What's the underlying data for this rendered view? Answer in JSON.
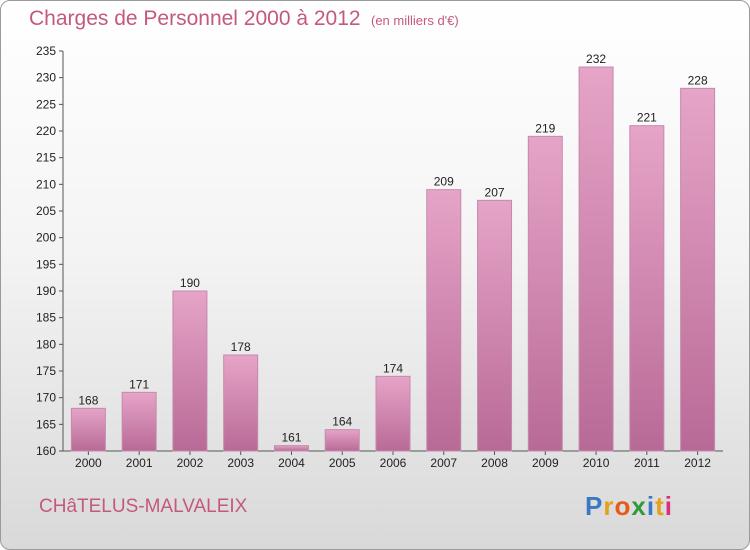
{
  "chart_data": {
    "type": "bar",
    "title": "Charges de Personnel 2000 à 2012",
    "subtitle": "(en milliers d'€)",
    "categories": [
      "2000",
      "2001",
      "2002",
      "2003",
      "2004",
      "2005",
      "2006",
      "2007",
      "2008",
      "2009",
      "2010",
      "2011",
      "2012"
    ],
    "values": [
      168,
      171,
      190,
      178,
      161,
      164,
      174,
      209,
      207,
      219,
      232,
      221,
      228
    ],
    "ylim": [
      160,
      235
    ],
    "yticks": [
      160,
      165,
      170,
      175,
      180,
      185,
      190,
      195,
      200,
      205,
      210,
      215,
      220,
      225,
      230,
      235
    ],
    "xlabel": "",
    "ylabel": "",
    "grid": false,
    "bar_color": "#d07aa6"
  },
  "footer": {
    "commune": "CHâTELUS-MALVALEIX",
    "logo_letters": [
      "P",
      "r",
      "o",
      "x",
      "i",
      "t",
      "i"
    ],
    "logo_colors": [
      "#3a78c4",
      "#e6a11a",
      "#e65a1a",
      "#2f9a3c",
      "#3a78c4",
      "#e6a11a",
      "#d9307a"
    ]
  }
}
